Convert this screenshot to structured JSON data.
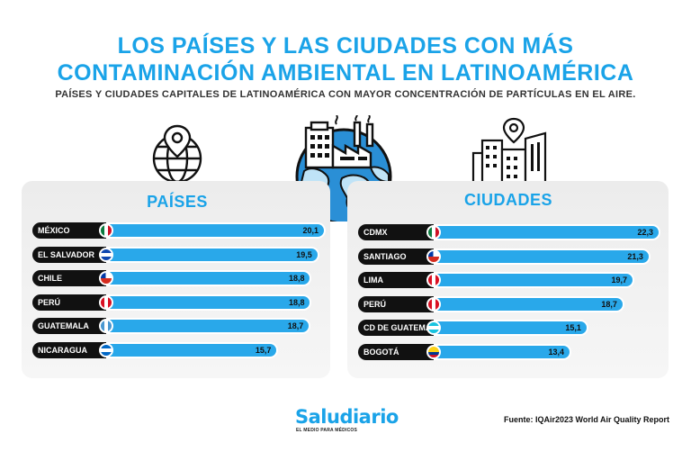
{
  "header": {
    "title_line1": "LOS PAÍSES Y LAS CIUDADES CON MÁS",
    "title_line2": "CONTAMINACIÓN AMBIENTAL EN LATINOAMÉRICA",
    "subtitle": "PAÍSES Y CIUDADES CAPITALES DE LATINOAMÉRICA CON MAYOR CONCENTRACIÓN DE PARTÍCULAS EN EL AIRE."
  },
  "colors": {
    "accent": "#1aa3e8",
    "bar": "#29a8ea",
    "dark": "#111111"
  },
  "icons": {
    "countries": "globe-pin-icon",
    "center": "factory-earth-icon",
    "cities": "city-pin-icon"
  },
  "chart_data": [
    {
      "type": "bar",
      "title": "PAÍSES",
      "categories": [
        "MÉXICO",
        "EL SALVADOR",
        "CHILE",
        "PERÚ",
        "GUATEMALA",
        "NICARAGUA"
      ],
      "values": [
        20.1,
        19.5,
        18.8,
        18.8,
        18.7,
        15.7
      ],
      "value_labels": [
        "20,1",
        "19,5",
        "18,8",
        "18,8",
        "18,7",
        "15,7"
      ],
      "flags": [
        "mexico-flag-icon",
        "el-salvador-flag-icon",
        "chile-flag-icon",
        "peru-flag-icon",
        "guatemala-flag-icon",
        "nicaragua-flag-icon"
      ],
      "xlim": [
        0,
        20.1
      ]
    },
    {
      "type": "bar",
      "title": "CIUDADES",
      "categories": [
        "CDMX",
        "SANTIAGO",
        "LIMA",
        "PERÚ",
        "CD DE GUATEMALA",
        "BOGOTÁ"
      ],
      "values": [
        22.3,
        21.3,
        19.7,
        18.7,
        15.1,
        13.4
      ],
      "value_labels": [
        "22,3",
        "21,3",
        "19,7",
        "18,7",
        "15,1",
        "13,4"
      ],
      "flags": [
        "mexico-flag-icon",
        "chile-flag-icon",
        "peru-flag-icon",
        "peru-flag-icon",
        "honduras-flag-icon",
        "colombia-flag-icon"
      ],
      "xlim": [
        0,
        22.3
      ]
    }
  ],
  "footer": {
    "brand": "Saludiario",
    "brand_tagline": "EL MEDIO PARA MÉDICOS",
    "source": "Fuente: IQAir2023 World Air Quality Report"
  }
}
